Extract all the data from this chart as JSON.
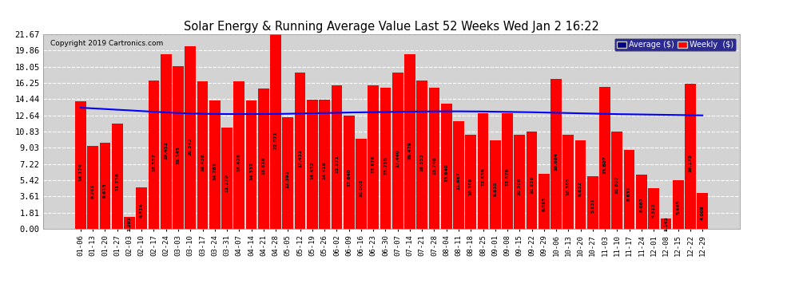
{
  "title": "Solar Energy & Running Average Value Last 52 Weeks Wed Jan 2 16:22",
  "copyright": "Copyright 2019 Cartronics.com",
  "bar_color": "#ff0000",
  "avg_line_color": "#0000ff",
  "background_color": "#ffffff",
  "plot_bg_color": "#d3d3d3",
  "grid_color": "#ffffff",
  "yticks": [
    0.0,
    1.81,
    3.61,
    5.42,
    7.22,
    9.03,
    10.83,
    12.64,
    14.44,
    16.25,
    18.05,
    19.86,
    21.67
  ],
  "categories": [
    "01-06",
    "01-13",
    "01-20",
    "01-27",
    "02-03",
    "02-10",
    "02-17",
    "02-24",
    "03-03",
    "03-10",
    "03-17",
    "03-24",
    "03-31",
    "04-07",
    "04-14",
    "04-21",
    "04-28",
    "05-05",
    "05-12",
    "05-19",
    "05-26",
    "06-02",
    "06-09",
    "06-16",
    "06-23",
    "06-30",
    "07-07",
    "07-14",
    "07-21",
    "07-28",
    "08-04",
    "08-11",
    "08-18",
    "08-25",
    "09-01",
    "09-08",
    "09-15",
    "09-22",
    "09-29",
    "10-06",
    "10-13",
    "10-20",
    "10-27",
    "11-03",
    "11-10",
    "11-17",
    "11-24",
    "12-01",
    "12-08",
    "12-15",
    "12-22",
    "12-29"
  ],
  "values": [
    14.174,
    9.261,
    9.613,
    11.736,
    1.293,
    4.614,
    16.537,
    19.452,
    18.145,
    20.342,
    16.438,
    14.281,
    11.27,
    16.428,
    14.332,
    15.616,
    22.071,
    12.391,
    17.432,
    14.432,
    14.416,
    15.971,
    12.64,
    10.003,
    15.979,
    15.71,
    17.44,
    19.429,
    16.553,
    15.748,
    13.94,
    11.967,
    10.509,
    12.836,
    9.835,
    12.879,
    10.506,
    10.836,
    6.095,
    16.684,
    10.505,
    9.832,
    5.831,
    15.807,
    10.807,
    8.831,
    6.062,
    4.513,
    1.143,
    5.445,
    16.175,
    4.008
  ],
  "avg_values": [
    13.5,
    13.42,
    13.35,
    13.27,
    13.2,
    13.12,
    13.05,
    12.97,
    12.9,
    12.85,
    12.82,
    12.8,
    12.79,
    12.79,
    12.79,
    12.79,
    12.8,
    12.82,
    12.85,
    12.88,
    12.9,
    12.93,
    12.96,
    12.98,
    13.0,
    13.02,
    13.04,
    13.06,
    13.07,
    13.08,
    13.09,
    13.09,
    13.08,
    13.07,
    13.05,
    13.03,
    13.01,
    12.99,
    12.96,
    12.93,
    12.9,
    12.87,
    12.84,
    12.81,
    12.78,
    12.76,
    12.74,
    12.72,
    12.7,
    12.68,
    12.66,
    12.64
  ]
}
